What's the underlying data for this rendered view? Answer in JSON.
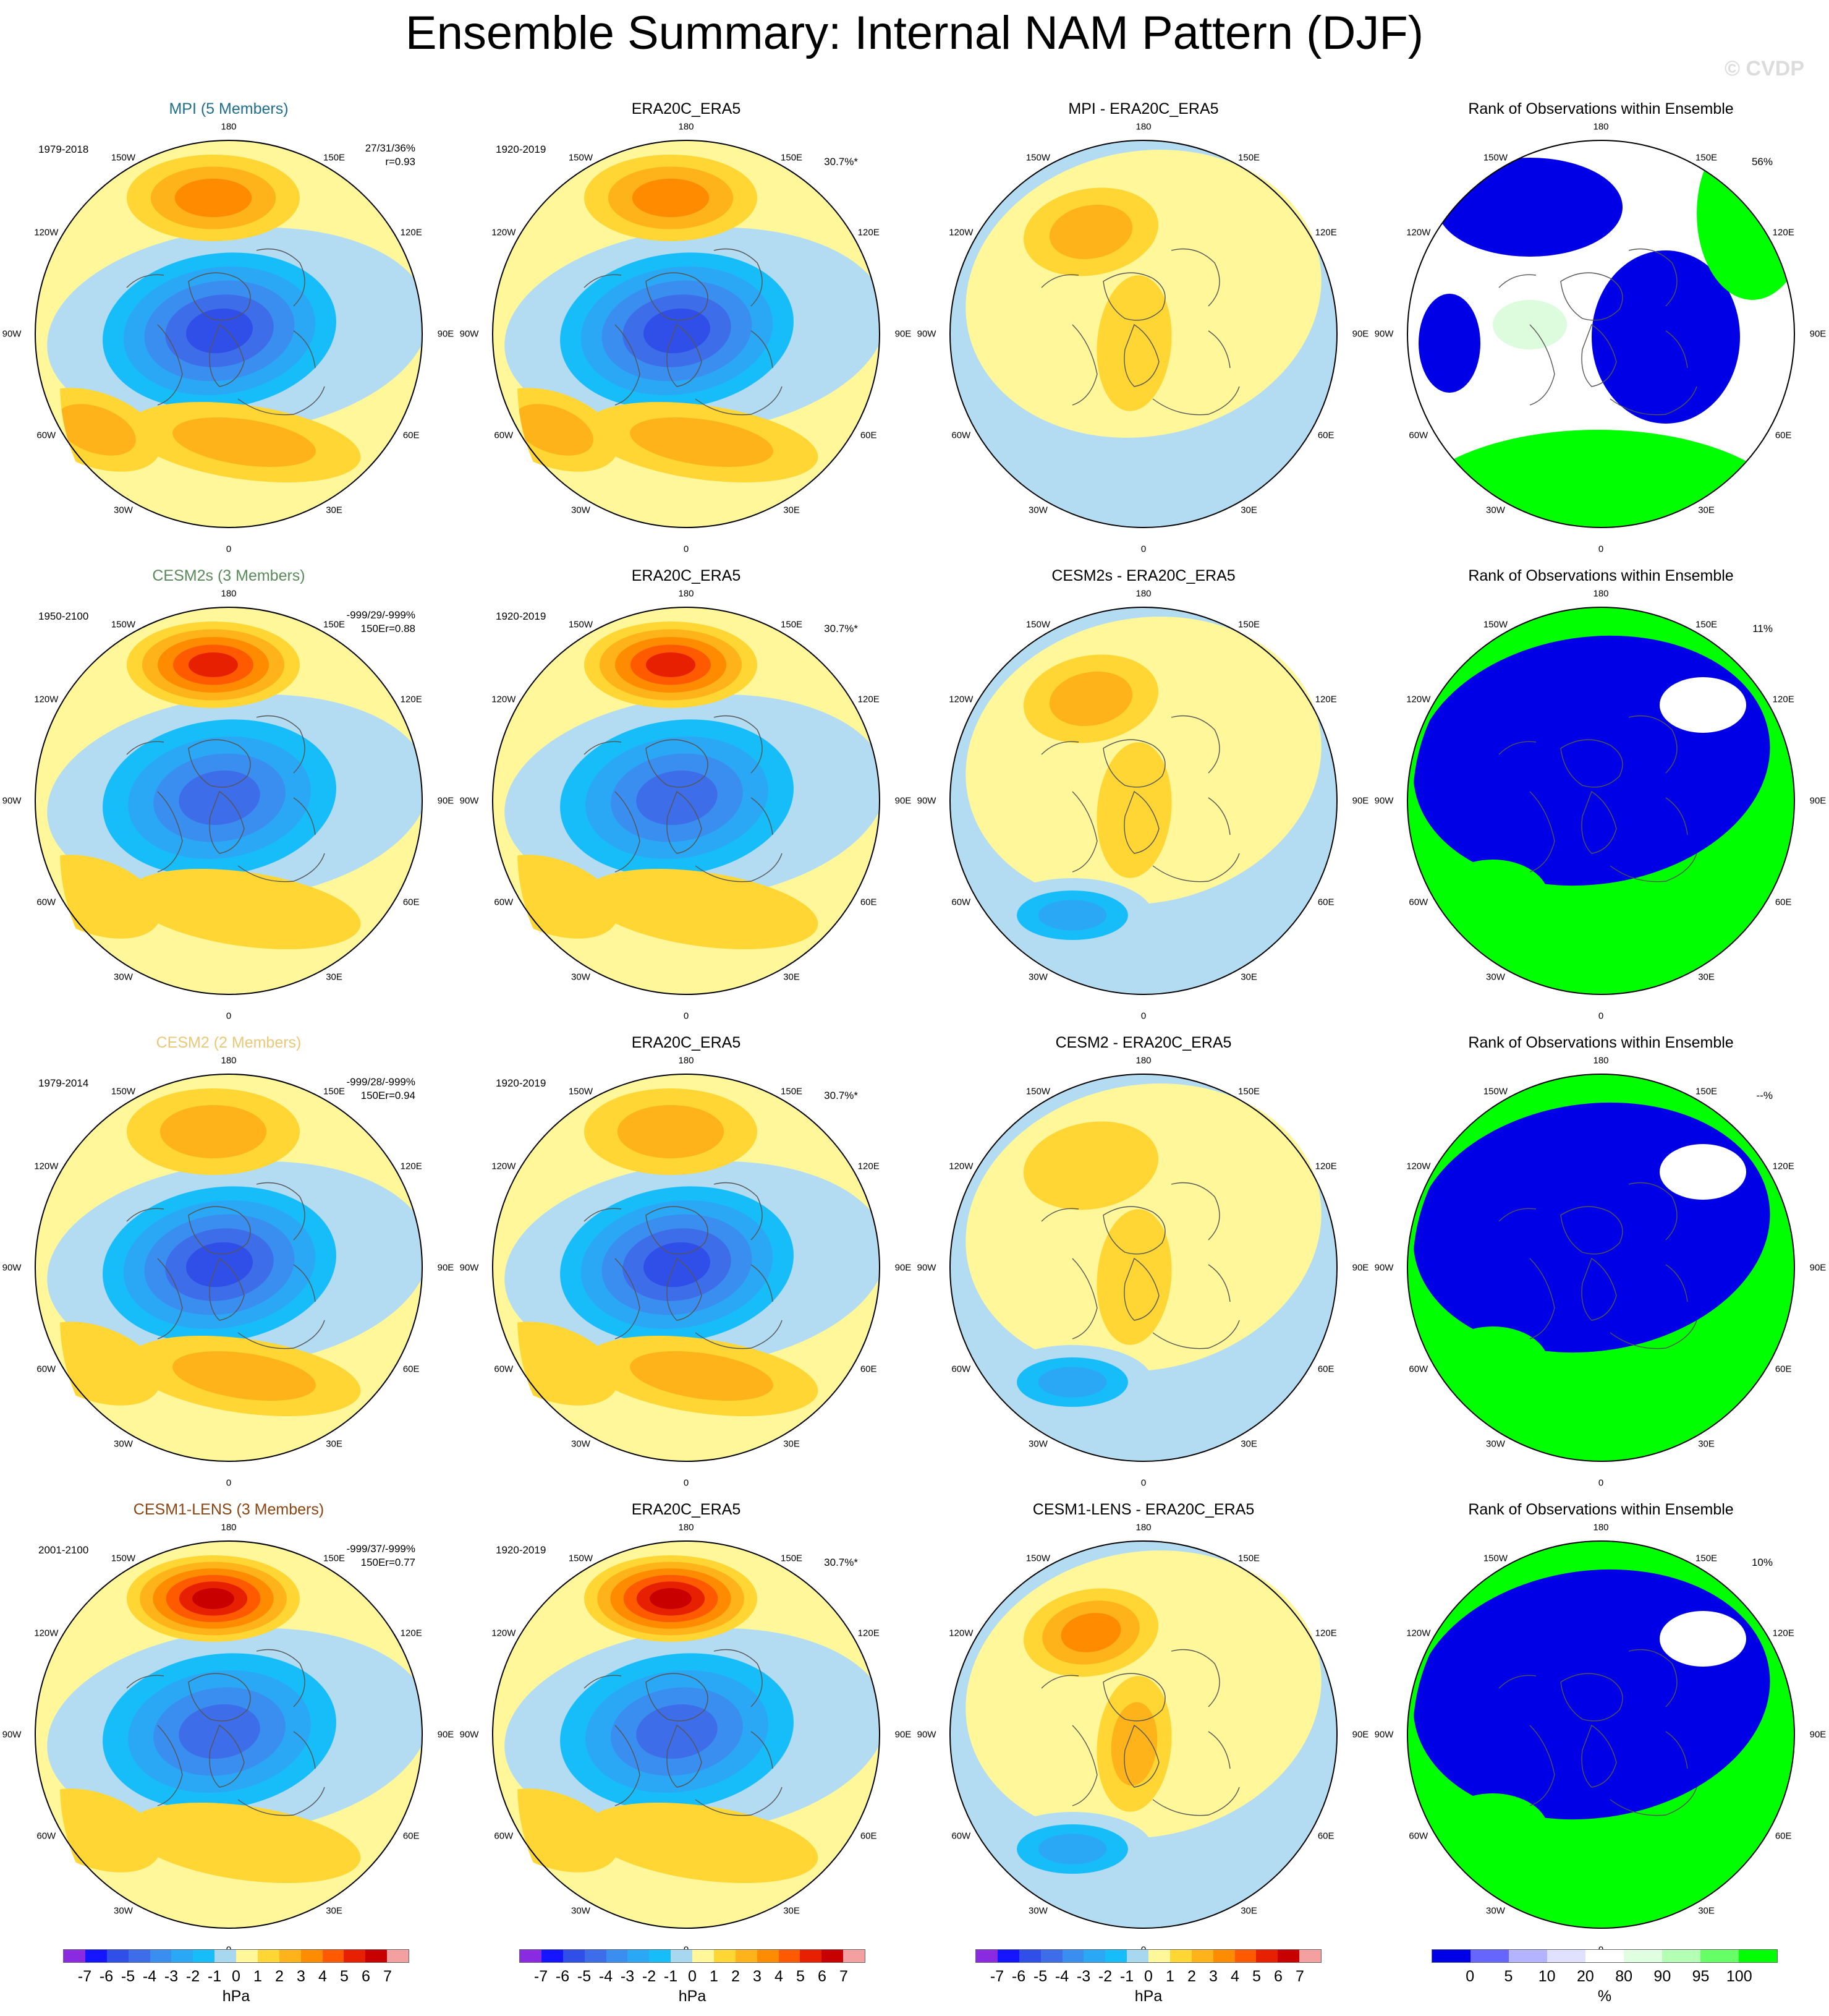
{
  "title": "Ensemble Summary: Internal NAM Pattern (DJF)",
  "watermark": "© CVDP",
  "map_labels": {
    "n180": "180",
    "w150": "150W",
    "e150": "150E",
    "w120": "120W",
    "e120": "120E",
    "w90": "90W",
    "e90": "90E",
    "w60": "60W",
    "e60": "60E",
    "w30": "30W",
    "e30": "30E",
    "s0": "0"
  },
  "colors": {
    "ocean_light_blue": "#b3dcf2",
    "light_yellow": "#fff799",
    "rank_blue": "#0000e6",
    "rank_green": "#00ff00",
    "rank_light_green": "#ddfbdd",
    "coast": "#555555"
  },
  "rows": [
    {
      "model_title": "MPI (5 Members)",
      "model_color": "#1f6e8c",
      "period": "1979-2018",
      "stats1": "27/31/36%",
      "stats2": "r=0.93",
      "obs_title": "ERA20C_ERA5",
      "obs_period": "1920-2019",
      "obs_pct": "30.7%*",
      "diff_title": "MPI - ERA20C_ERA5",
      "rank_title": "Rank of Observations within Ensemble",
      "rank_pct": "56%",
      "levels": {
        "hi": 3,
        "lo": -5,
        "atl": 2,
        "pac": 2
      },
      "diff_levels": {
        "a": 2,
        "b": 0
      },
      "rank_mode": "mixed"
    },
    {
      "model_title": "CESM2s (3 Members)",
      "model_color": "#5a8a5a",
      "period": "1950-2100",
      "stats1": "-999/29/-999%",
      "stats2": "150Er=0.88",
      "obs_title": "ERA20C_ERA5",
      "obs_period": "1920-2019",
      "obs_pct": "30.7%*",
      "diff_title": "CESM2s - ERA20C_ERA5",
      "rank_title": "Rank of Observations within Ensemble",
      "rank_pct": "11%",
      "levels": {
        "hi": 5,
        "lo": -4,
        "atl": 1,
        "pac": 1
      },
      "diff_levels": {
        "a": 2,
        "b": -2
      },
      "rank_mode": "blue"
    },
    {
      "model_title": "CESM2 (2 Members)",
      "model_color": "#e8c97a",
      "period": "1979-2014",
      "stats1": "-999/28/-999%",
      "stats2": "150Er=0.94",
      "obs_title": "ERA20C_ERA5",
      "obs_period": "1920-2019",
      "obs_pct": "30.7%*",
      "diff_title": "CESM2 - ERA20C_ERA5",
      "rank_title": "Rank of Observations within Ensemble",
      "rank_pct": "--%",
      "levels": {
        "hi": 2,
        "lo": -5,
        "atl": 2,
        "pac": 1
      },
      "diff_levels": {
        "a": 1,
        "b": -2
      },
      "rank_mode": "blue"
    },
    {
      "model_title": "CESM1-LENS (3 Members)",
      "model_color": "#8b4513",
      "period": "2001-2100",
      "stats1": "-999/37/-999%",
      "stats2": "150Er=0.77",
      "obs_title": "ERA20C_ERA5",
      "obs_period": "1920-2019",
      "obs_pct": "30.7%*",
      "diff_title": "CESM1-LENS - ERA20C_ERA5",
      "rank_title": "Rank of Observations within Ensemble",
      "rank_pct": "10%",
      "levels": {
        "hi": 6,
        "lo": -4,
        "atl": 1,
        "pac": 1
      },
      "diff_levels": {
        "a": 3,
        "b": -2
      },
      "rank_mode": "blue"
    }
  ],
  "colorbar_hpa": {
    "unit": "hPa",
    "ticks": [
      "-7",
      "-6",
      "-5",
      "-4",
      "-3",
      "-2",
      "-1",
      "0",
      "1",
      "2",
      "3",
      "4",
      "5",
      "6",
      "7"
    ],
    "colors": [
      "#8a2be2",
      "#1515ff",
      "#2f4fe8",
      "#3d6de8",
      "#3a8ef0",
      "#2aa8f5",
      "#17bdf9",
      "#a8d8f0",
      "#fff799",
      "#ffd633",
      "#ffb31a",
      "#ff8c00",
      "#ff5a00",
      "#e62000",
      "#c80000",
      "#f4a0a0"
    ]
  },
  "colorbar_rank": {
    "unit": "%",
    "ticks": [
      "0",
      "5",
      "10",
      "20",
      "80",
      "90",
      "95",
      "100"
    ],
    "colors": [
      "#0000e6",
      "#6666ff",
      "#b3b3ff",
      "#e0e0ff",
      "#ffffff",
      "#e0ffe0",
      "#b3ffb3",
      "#66ff66",
      "#00ff00"
    ]
  }
}
